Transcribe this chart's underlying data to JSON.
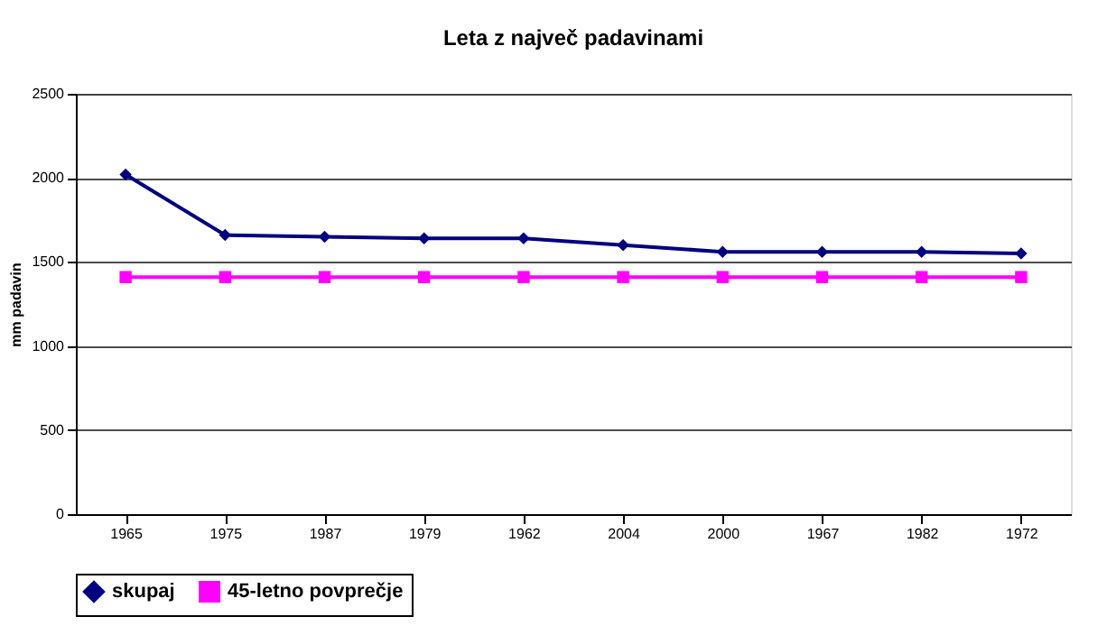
{
  "chart_data": {
    "type": "line",
    "title": "Leta z največ padavinami",
    "ylabel": "mm padavin",
    "categories": [
      "1965",
      "1975",
      "1987",
      "1979",
      "1962",
      "2004",
      "2000",
      "1967",
      "1982",
      "1972"
    ],
    "series": [
      {
        "name": "skupaj",
        "color": "#000080",
        "marker": "diamond",
        "values": [
          2020,
          1660,
          1650,
          1640,
          1640,
          1600,
          1560,
          1560,
          1560,
          1550
        ]
      },
      {
        "name": "45-letno povprečje",
        "color": "#ff00ff",
        "marker": "square",
        "values": [
          1410,
          1410,
          1410,
          1410,
          1410,
          1410,
          1410,
          1410,
          1410,
          1410
        ]
      }
    ],
    "ylim": [
      0,
      2500
    ],
    "yticks": [
      0,
      500,
      1000,
      1500,
      2000,
      2500
    ],
    "grid": "y",
    "legend": "bottom",
    "line_style": "solid"
  }
}
